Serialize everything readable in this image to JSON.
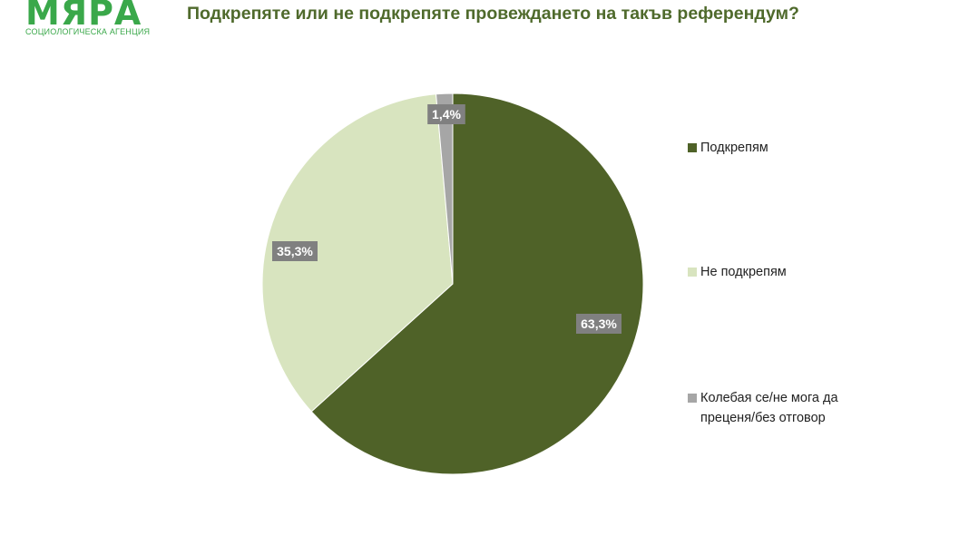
{
  "logo": {
    "name": "МЯРА",
    "tagline": "СОЦИОЛОГИЧЕСКА АГЕНЦИЯ"
  },
  "chart_data": {
    "type": "pie",
    "title": "Подкрепяте или не подкрепяте провеждането на такъв референдум?",
    "slices": [
      {
        "label": "Подкрепям",
        "value": 63.3,
        "display": "63,3%",
        "color": "#4f6228"
      },
      {
        "label": "Не подкрепям",
        "value": 35.3,
        "display": "35,3%",
        "color": "#d8e4bf"
      },
      {
        "label": "Колебая се/не мога да преценя/без отговор",
        "value": 1.4,
        "display": "1,4%",
        "color": "#a6a6a6"
      }
    ],
    "start": "12 o'clock, clockwise",
    "legend_position": "right",
    "label_box_color": "#808080"
  }
}
